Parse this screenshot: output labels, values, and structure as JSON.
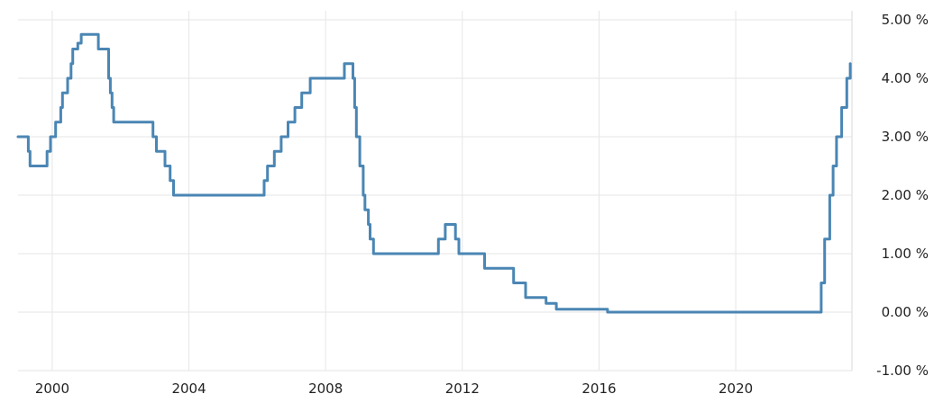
{
  "chart_data": {
    "type": "line",
    "title": "",
    "xlabel": "",
    "ylabel": "",
    "xlim": [
      1999.0,
      2023.4
    ],
    "ylim": [
      -1.0,
      5.0
    ],
    "grid": true,
    "line_shape": "step",
    "line_color": "#4a86b4",
    "x_ticks": [
      2000,
      2004,
      2008,
      2012,
      2016,
      2020
    ],
    "x_tick_labels": [
      "2000",
      "2004",
      "2008",
      "2012",
      "2016",
      "2020"
    ],
    "y_ticks": [
      -1,
      0,
      1,
      2,
      3,
      4,
      5
    ],
    "y_tick_labels": [
      "-1.00 %",
      "0.00 %",
      "1.00 %",
      "2.00 %",
      "3.00 %",
      "4.00 %",
      "5.00 %"
    ],
    "series": [
      {
        "x": [
          1999.0,
          1999.3,
          1999.35,
          1999.85,
          1999.95,
          2000.1,
          2000.25,
          2000.3,
          2000.45,
          2000.55,
          2000.6,
          2000.75,
          2000.85,
          2000.9,
          2001.35,
          2001.4,
          2001.65,
          2001.7,
          2001.75,
          2001.8,
          2001.95,
          2002.95,
          2003.05,
          2003.3,
          2003.45,
          2003.55,
          2005.95,
          2006.2,
          2006.3,
          2006.4,
          2006.5,
          2006.6,
          2006.7,
          2006.8,
          2006.9,
          2007.0,
          2007.1,
          2007.2,
          2007.3,
          2007.45,
          2007.55,
          2007.65,
          2007.8,
          2008.55,
          2008.6,
          2008.8,
          2008.85,
          2008.9,
          2009.0,
          2009.1,
          2009.15,
          2009.25,
          2009.3,
          2009.4,
          2011.3,
          2011.5,
          2011.8,
          2011.9,
          2012.45,
          2012.65,
          2013.5,
          2013.85,
          2014.45,
          2014.6,
          2014.75,
          2016.25,
          2022.35,
          2022.5,
          2022.6,
          2022.75,
          2022.85,
          2022.95,
          2023.1,
          2023.25,
          2023.35
        ],
        "y": [
          3.0,
          2.75,
          2.5,
          2.75,
          3.0,
          3.25,
          3.5,
          3.75,
          4.0,
          4.25,
          4.5,
          4.6,
          4.75,
          4.75,
          4.5,
          4.5,
          4.0,
          3.75,
          3.5,
          3.25,
          3.25,
          3.0,
          2.75,
          2.5,
          2.25,
          2.0,
          2.0,
          2.25,
          2.5,
          2.5,
          2.75,
          2.75,
          3.0,
          3.0,
          3.25,
          3.25,
          3.5,
          3.5,
          3.75,
          3.75,
          4.0,
          4.0,
          4.0,
          4.25,
          4.25,
          4.0,
          3.5,
          3.0,
          2.5,
          2.0,
          1.75,
          1.5,
          1.25,
          1.0,
          1.25,
          1.5,
          1.25,
          1.0,
          1.0,
          0.75,
          0.5,
          0.25,
          0.15,
          0.15,
          0.05,
          0.0,
          0.0,
          0.5,
          1.25,
          2.0,
          2.5,
          3.0,
          3.5,
          4.0,
          4.25
        ]
      }
    ]
  }
}
